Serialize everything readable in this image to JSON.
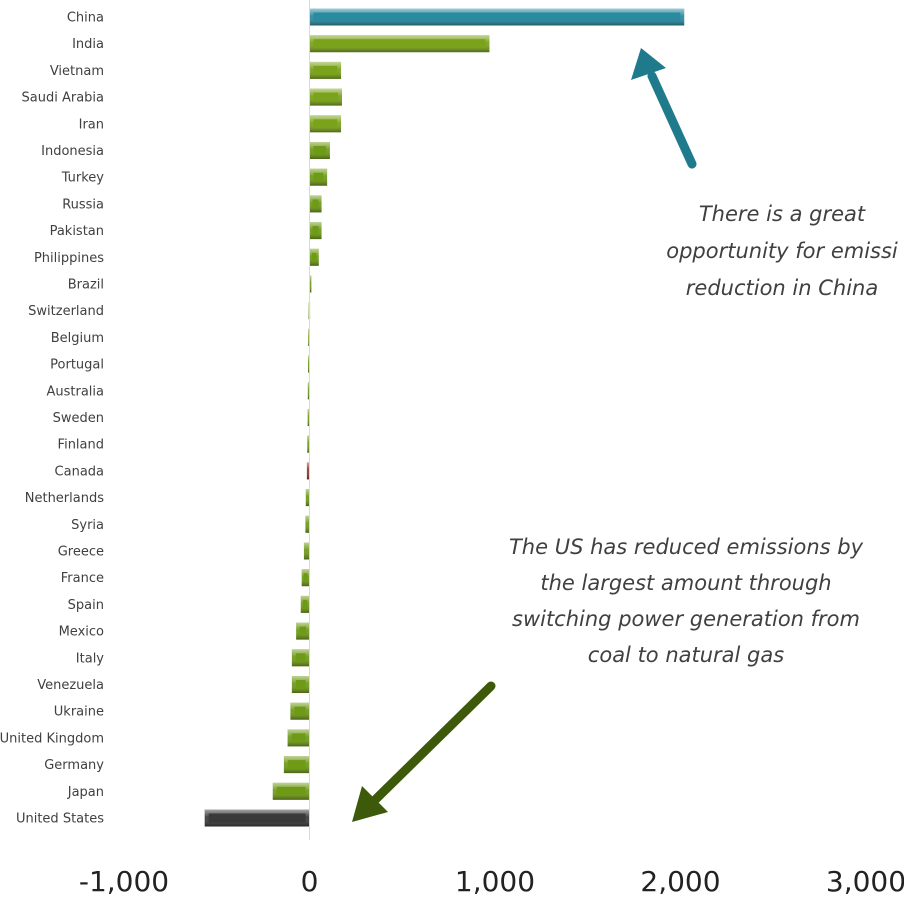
{
  "chart_data": {
    "type": "bar",
    "orientation": "horizontal",
    "categories": [
      "China",
      "India",
      "Vietnam",
      "Saudi Arabia",
      "Iran",
      "Indonesia",
      "Turkey",
      "Russia",
      "Pakistan",
      "Philippines",
      "Brazil",
      "Switzerland",
      "Belgium",
      "Portugal",
      "Australia",
      "Sweden",
      "Finland",
      "Canada",
      "Netherlands",
      "Syria",
      "Greece",
      "France",
      "Spain",
      "Mexico",
      "Italy",
      "Venezuela",
      "Ukraine",
      "United Kingdom",
      "Germany",
      "Japan",
      "United States"
    ],
    "values": [
      2020,
      970,
      170,
      175,
      170,
      110,
      95,
      65,
      65,
      50,
      10,
      -5,
      -7,
      -8,
      -9,
      -10,
      -12,
      -14,
      -20,
      -22,
      -30,
      -42,
      -47,
      -72,
      -95,
      -95,
      -103,
      -118,
      -138,
      -198,
      -565
    ],
    "bar_colors": [
      "#2a8aa0",
      "#7aa21a",
      "#7aa21a",
      "#7aa21a",
      "#7aa21a",
      "#6f9a18",
      "#6f9a18",
      "#6f9a18",
      "#6f9a18",
      "#6f9a18",
      "#6f9a18",
      "#6f9a18",
      "#6f9a18",
      "#6f9a18",
      "#6f9a18",
      "#6f9a18",
      "#6f9a18",
      "#8a3a2a",
      "#6f9a18",
      "#6f9a18",
      "#6f9a18",
      "#6f9a18",
      "#6f9a18",
      "#6f9a18",
      "#6f9a18",
      "#6f9a18",
      "#6f9a18",
      "#6f9a18",
      "#6f9a18",
      "#6f9a18",
      "#3a3a3a"
    ],
    "xticks": [
      "-1,000",
      "0",
      "1,000",
      "2,000",
      "3,000"
    ],
    "xtick_values": [
      -1000,
      0,
      1000,
      2000,
      3000
    ],
    "xlim": [
      -1000,
      3000
    ],
    "grid": false,
    "legend": "none",
    "annotations": [
      {
        "text": [
          "There is a great",
          "opportunity for emissi",
          "reduction in China"
        ],
        "arrow_color": "#1f7a8c"
      },
      {
        "text": [
          "The US has reduced emissions by",
          "the largest amount through",
          "switching power generation from",
          "coal to natural gas"
        ],
        "arrow_color": "#3d5a0a"
      }
    ]
  }
}
